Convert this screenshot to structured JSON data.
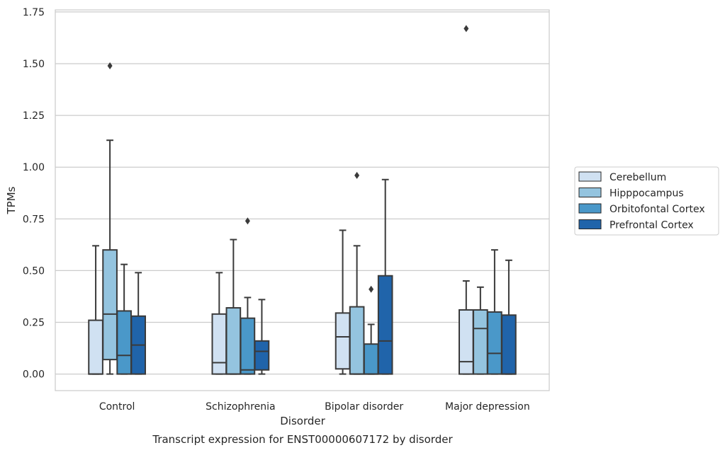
{
  "chart_data": {
    "type": "box",
    "title": "Transcript expression for ENST00000607172 by disorder",
    "xlabel": "Disorder",
    "ylabel": "TPMs",
    "ylim": [
      -0.08,
      1.76
    ],
    "yticks": [
      0.0,
      0.25,
      0.5,
      0.75,
      1.0,
      1.25,
      1.5,
      1.75
    ],
    "ytick_labels": [
      "0.00",
      "0.25",
      "0.50",
      "0.75",
      "1.00",
      "1.25",
      "1.50",
      "1.75"
    ],
    "grid": "horizontal",
    "legend_position": "right",
    "categories": [
      "Control",
      "Schizophrenia",
      "Bipolar disorder",
      "Major depression"
    ],
    "series": [
      {
        "name": "Cerebellum",
        "color": "#d0e1f2",
        "boxes": [
          {
            "whislo": 0.0,
            "q1": 0.0,
            "med": 0.0,
            "q3": 0.26,
            "whishi": 0.62,
            "fliers": []
          },
          {
            "whislo": 0.0,
            "q1": 0.0,
            "med": 0.055,
            "q3": 0.29,
            "whishi": 0.49,
            "fliers": []
          },
          {
            "whislo": 0.0,
            "q1": 0.025,
            "med": 0.18,
            "q3": 0.295,
            "whishi": 0.695,
            "fliers": []
          },
          {
            "whislo": 0.0,
            "q1": 0.0,
            "med": 0.06,
            "q3": 0.31,
            "whishi": 0.45,
            "fliers": [
              1.67
            ]
          }
        ]
      },
      {
        "name": "Hipppocampus",
        "color": "#94c4df",
        "boxes": [
          {
            "whislo": 0.0,
            "q1": 0.07,
            "med": 0.29,
            "q3": 0.6,
            "whishi": 1.13,
            "fliers": [
              1.49
            ]
          },
          {
            "whislo": 0.0,
            "q1": 0.0,
            "med": 0.0,
            "q3": 0.32,
            "whishi": 0.65,
            "fliers": []
          },
          {
            "whislo": 0.0,
            "q1": 0.0,
            "med": 0.0,
            "q3": 0.325,
            "whishi": 0.62,
            "fliers": [
              0.96
            ]
          },
          {
            "whislo": 0.0,
            "q1": 0.0,
            "med": 0.22,
            "q3": 0.31,
            "whishi": 0.42,
            "fliers": []
          }
        ]
      },
      {
        "name": "Orbitofontal Cortex",
        "color": "#4a98c9",
        "boxes": [
          {
            "whislo": 0.0,
            "q1": 0.0,
            "med": 0.09,
            "q3": 0.305,
            "whishi": 0.53,
            "fliers": []
          },
          {
            "whislo": 0.0,
            "q1": 0.0,
            "med": 0.02,
            "q3": 0.27,
            "whishi": 0.37,
            "fliers": [
              0.74
            ]
          },
          {
            "whislo": 0.0,
            "q1": 0.0,
            "med": 0.0,
            "q3": 0.145,
            "whishi": 0.24,
            "fliers": [
              0.41
            ]
          },
          {
            "whislo": 0.0,
            "q1": 0.0,
            "med": 0.1,
            "q3": 0.3,
            "whishi": 0.6,
            "fliers": []
          }
        ]
      },
      {
        "name": "Prefrontal Cortex",
        "color": "#2064aa",
        "boxes": [
          {
            "whislo": 0.0,
            "q1": 0.0,
            "med": 0.14,
            "q3": 0.28,
            "whishi": 0.49,
            "fliers": []
          },
          {
            "whislo": 0.0,
            "q1": 0.02,
            "med": 0.11,
            "q3": 0.16,
            "whishi": 0.36,
            "fliers": []
          },
          {
            "whislo": 0.0,
            "q1": 0.0,
            "med": 0.16,
            "q3": 0.475,
            "whishi": 0.94,
            "fliers": []
          },
          {
            "whislo": 0.0,
            "q1": 0.0,
            "med": 0.0,
            "q3": 0.285,
            "whishi": 0.55,
            "fliers": []
          }
        ]
      }
    ]
  }
}
